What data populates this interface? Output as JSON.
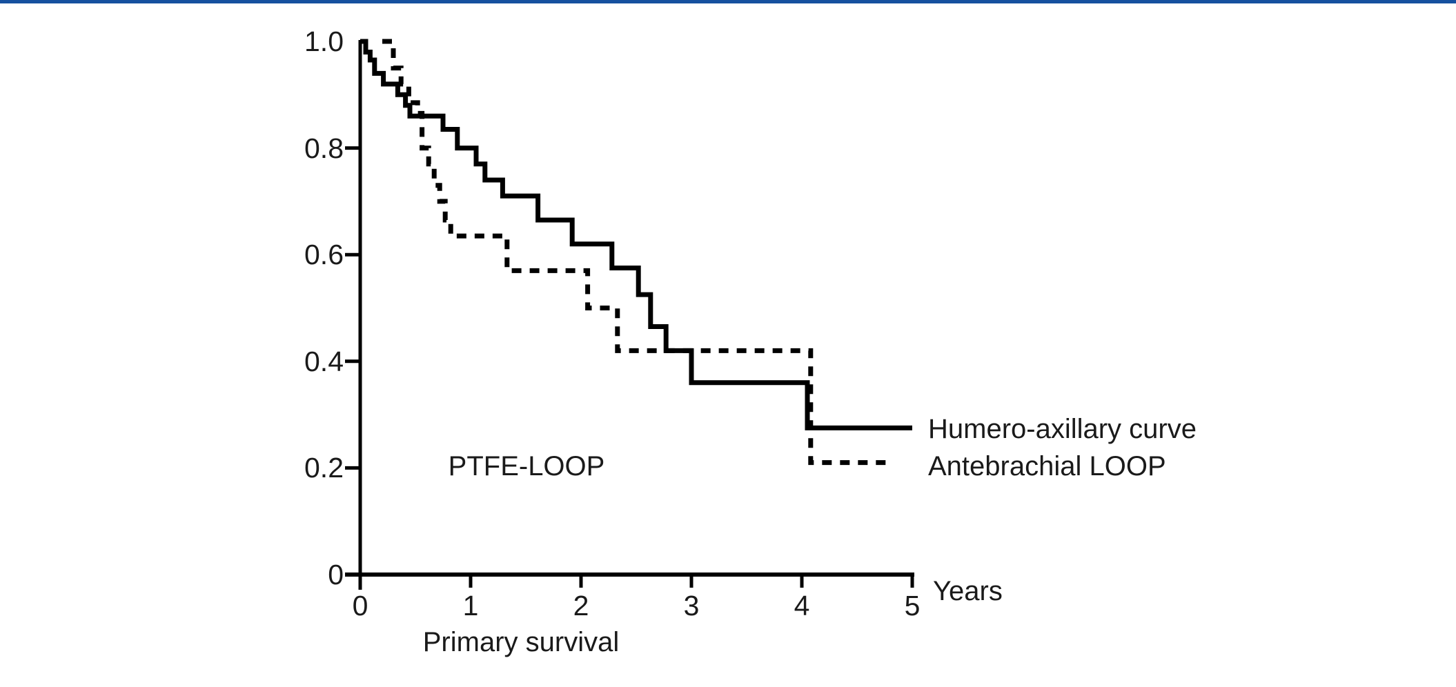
{
  "page": {
    "background": "#ffffff",
    "top_bar_color": "#16519f"
  },
  "chart_data": {
    "type": "line",
    "subtype": "kaplan_meier_step_survival",
    "title": "",
    "annotation": "PTFE-LOOP",
    "xlabel": "Primary survival",
    "x_unit_label": "Years",
    "xlim": [
      0,
      5
    ],
    "ylim": [
      0,
      1.0
    ],
    "x_tick_values": [
      0,
      1,
      2,
      3,
      4,
      5
    ],
    "x_tick_labels": [
      "0",
      "1",
      "2",
      "3",
      "4",
      "5"
    ],
    "y_tick_values": [
      1.0,
      0.8,
      0.6,
      0.4,
      0.2,
      0
    ],
    "y_tick_labels": [
      "1.0",
      "0.8",
      "0.6",
      "0.4",
      "0.2",
      "0"
    ],
    "grid": false,
    "legend_position": "right-of-curve-ends",
    "series": [
      {
        "name": "Humero-axillary curve",
        "line_style": "solid",
        "color": "#000000",
        "end_x": 5.0,
        "steps": [
          [
            0.0,
            1.0
          ],
          [
            0.05,
            0.98
          ],
          [
            0.09,
            0.965
          ],
          [
            0.13,
            0.94
          ],
          [
            0.21,
            0.92
          ],
          [
            0.34,
            0.9
          ],
          [
            0.41,
            0.88
          ],
          [
            0.45,
            0.86
          ],
          [
            0.75,
            0.835
          ],
          [
            0.88,
            0.8
          ],
          [
            1.05,
            0.77
          ],
          [
            1.13,
            0.74
          ],
          [
            1.29,
            0.71
          ],
          [
            1.61,
            0.665
          ],
          [
            1.92,
            0.62
          ],
          [
            2.28,
            0.575
          ],
          [
            2.52,
            0.525
          ],
          [
            2.63,
            0.465
          ],
          [
            2.77,
            0.42
          ],
          [
            3.0,
            0.36
          ],
          [
            4.05,
            0.275
          ]
        ]
      },
      {
        "name": "Antebrachial LOOP",
        "line_style": "dashed",
        "color": "#000000",
        "end_x": 4.83,
        "steps": [
          [
            0.2,
            1.0
          ],
          [
            0.3,
            0.95
          ],
          [
            0.37,
            0.92
          ],
          [
            0.44,
            0.885
          ],
          [
            0.52,
            0.865
          ],
          [
            0.56,
            0.8
          ],
          [
            0.62,
            0.77
          ],
          [
            0.67,
            0.73
          ],
          [
            0.72,
            0.7
          ],
          [
            0.77,
            0.665
          ],
          [
            0.82,
            0.635
          ],
          [
            1.33,
            0.57
          ],
          [
            2.06,
            0.5
          ],
          [
            2.33,
            0.42
          ],
          [
            4.08,
            0.21
          ]
        ]
      }
    ]
  }
}
